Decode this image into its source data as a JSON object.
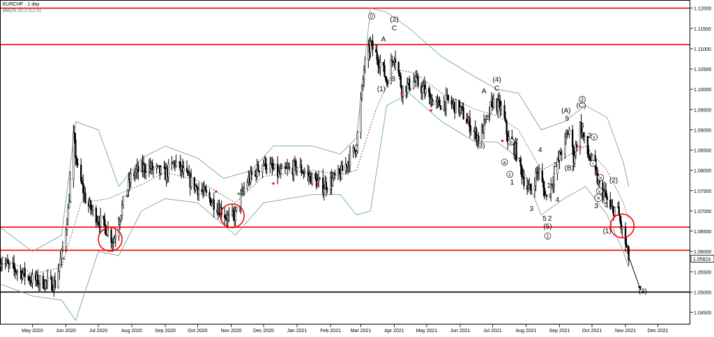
{
  "header": {
    "symbol_timeframe": "EURCHF · 1 day",
    "indicator": "BB(20,20,2.0,2.0)"
  },
  "colors": {
    "background": "#ffffff",
    "candle": "#000000",
    "bollinger": "#6fa79a",
    "sma_dotted": "#555555",
    "support_resistance": "#ff0000",
    "target_line": "#000000",
    "buy_arrow": "#1a9e1a",
    "sell_arrow": "#d02020",
    "highlight_circle": "#ff0000"
  },
  "chart_data": {
    "type": "candlestick",
    "title": "EURCHF · 1 day",
    "xlabel": "",
    "ylabel": "",
    "x_range": [
      "2020-04-01",
      "2021-12-31"
    ],
    "ylim": [
      1.042,
      1.122
    ],
    "y_ticks": [
      "1.12000",
      "1.11500",
      "1.11000",
      "1.10500",
      "1.10000",
      "1.09500",
      "1.09000",
      "1.08500",
      "1.08000",
      "1.07500",
      "1.07000",
      "1.06500",
      "1.06000",
      "1.05500",
      "1.05000",
      "1.04500"
    ],
    "x_ticks": [
      {
        "date": "2020-05-01",
        "label": "May 2020"
      },
      {
        "date": "2020-06-01",
        "label": "Jun 2020"
      },
      {
        "date": "2020-07-01",
        "label": "Jul 2020"
      },
      {
        "date": "2020-08-01",
        "label": "Aug 2020"
      },
      {
        "date": "2020-09-01",
        "label": "Sep 2020"
      },
      {
        "date": "2020-10-01",
        "label": "Oct 2020"
      },
      {
        "date": "2020-11-01",
        "label": "Nov 2020"
      },
      {
        "date": "2020-12-01",
        "label": "Dec 2020"
      },
      {
        "date": "2021-01-01",
        "label": "Jan 2021"
      },
      {
        "date": "2021-02-01",
        "label": "Feb 2021"
      },
      {
        "date": "2021-03-01",
        "label": "Mar 2021"
      },
      {
        "date": "2021-04-01",
        "label": "Apr 2021"
      },
      {
        "date": "2021-05-01",
        "label": "May 2021"
      },
      {
        "date": "2021-06-01",
        "label": "Jun 2021"
      },
      {
        "date": "2021-07-01",
        "label": "Jul 2021"
      },
      {
        "date": "2021-08-01",
        "label": "Aug 2021"
      },
      {
        "date": "2021-09-01",
        "label": "Sep 2021"
      },
      {
        "date": "2021-10-01",
        "label": "Oct 2021"
      },
      {
        "date": "2021-11-01",
        "label": "Nov 2021"
      },
      {
        "date": "2021-12-01",
        "label": "Dec 2021"
      }
    ],
    "current_price": "1.05824",
    "horizontal_levels": [
      {
        "price": 1.12,
        "color": "#ff0000"
      },
      {
        "price": 1.111,
        "color": "#ff0000"
      },
      {
        "price": 1.066,
        "color": "#ff0000"
      },
      {
        "price": 1.0603,
        "color": "#ff0000"
      },
      {
        "price": 1.05,
        "color": "#000000"
      }
    ],
    "close_path": [
      [
        "2020-04-01",
        1.058
      ],
      [
        "2020-04-10",
        1.056
      ],
      [
        "2020-04-20",
        1.055
      ],
      [
        "2020-05-01",
        1.053
      ],
      [
        "2020-05-10",
        1.0525
      ],
      [
        "2020-05-22",
        1.052
      ],
      [
        "2020-05-28",
        1.059
      ],
      [
        "2020-06-03",
        1.07
      ],
      [
        "2020-06-08",
        1.088
      ],
      [
        "2020-06-12",
        1.08
      ],
      [
        "2020-06-20",
        1.072
      ],
      [
        "2020-07-01",
        1.068
      ],
      [
        "2020-07-10",
        1.065
      ],
      [
        "2020-07-15",
        1.0625
      ],
      [
        "2020-07-22",
        1.07
      ],
      [
        "2020-08-01",
        1.079
      ],
      [
        "2020-08-15",
        1.081
      ],
      [
        "2020-09-01",
        1.079
      ],
      [
        "2020-09-10",
        1.082
      ],
      [
        "2020-09-25",
        1.077
      ],
      [
        "2020-10-08",
        1.074
      ],
      [
        "2020-10-20",
        1.071
      ],
      [
        "2020-10-30",
        1.068
      ],
      [
        "2020-11-05",
        1.069
      ],
      [
        "2020-11-15",
        1.077
      ],
      [
        "2020-12-01",
        1.082
      ],
      [
        "2020-12-15",
        1.079
      ],
      [
        "2021-01-01",
        1.081
      ],
      [
        "2021-01-15",
        1.078
      ],
      [
        "2021-01-25",
        1.076
      ],
      [
        "2021-02-10",
        1.079
      ],
      [
        "2021-02-25",
        1.086
      ],
      [
        "2021-03-04",
        1.105
      ],
      [
        "2021-03-10",
        1.111
      ],
      [
        "2021-03-20",
        1.106
      ],
      [
        "2021-03-25",
        1.102
      ],
      [
        "2021-04-01",
        1.109
      ],
      [
        "2021-04-08",
        1.1
      ],
      [
        "2021-04-20",
        1.102
      ],
      [
        "2021-05-01",
        1.099
      ],
      [
        "2021-05-10",
        1.096
      ],
      [
        "2021-05-20",
        1.097
      ],
      [
        "2021-06-01",
        1.095
      ],
      [
        "2021-06-10",
        1.091
      ],
      [
        "2021-06-18",
        1.088
      ],
      [
        "2021-06-25",
        1.092
      ],
      [
        "2021-07-01",
        1.097
      ],
      [
        "2021-07-10",
        1.095
      ],
      [
        "2021-07-15",
        1.088
      ],
      [
        "2021-07-22",
        1.085
      ],
      [
        "2021-08-01",
        1.076
      ],
      [
        "2021-08-05",
        1.075
      ],
      [
        "2021-08-12",
        1.08
      ],
      [
        "2021-08-20",
        1.073
      ],
      [
        "2021-08-27",
        1.079
      ],
      [
        "2021-09-03",
        1.085
      ],
      [
        "2021-09-10",
        1.09
      ],
      [
        "2021-09-14",
        1.083
      ],
      [
        "2021-09-20",
        1.091
      ],
      [
        "2021-09-27",
        1.084
      ],
      [
        "2021-10-01",
        1.082
      ],
      [
        "2021-10-08",
        1.076
      ],
      [
        "2021-10-13",
        1.074
      ],
      [
        "2021-10-18",
        1.07
      ],
      [
        "2021-10-24",
        1.071
      ],
      [
        "2021-10-28",
        1.066
      ],
      [
        "2021-11-01",
        1.062
      ],
      [
        "2021-11-04",
        1.0582
      ]
    ],
    "bollinger_upper": [
      [
        "2020-04-01",
        1.066
      ],
      [
        "2020-05-01",
        1.06
      ],
      [
        "2020-05-28",
        1.064
      ],
      [
        "2020-06-10",
        1.092
      ],
      [
        "2020-07-01",
        1.09
      ],
      [
        "2020-07-20",
        1.076
      ],
      [
        "2020-08-10",
        1.083
      ],
      [
        "2020-09-01",
        1.086
      ],
      [
        "2020-10-01",
        1.083
      ],
      [
        "2020-10-25",
        1.078
      ],
      [
        "2020-11-20",
        1.08
      ],
      [
        "2020-12-10",
        1.086
      ],
      [
        "2021-01-15",
        1.086
      ],
      [
        "2021-02-10",
        1.084
      ],
      [
        "2021-02-25",
        1.088
      ],
      [
        "2021-03-10",
        1.12
      ],
      [
        "2021-03-25",
        1.119
      ],
      [
        "2021-04-15",
        1.115
      ],
      [
        "2021-05-15",
        1.108
      ],
      [
        "2021-06-15",
        1.103
      ],
      [
        "2021-07-05",
        1.1
      ],
      [
        "2021-07-25",
        1.099
      ],
      [
        "2021-08-15",
        1.09
      ],
      [
        "2021-09-05",
        1.092
      ],
      [
        "2021-09-25",
        1.096
      ],
      [
        "2021-10-15",
        1.093
      ],
      [
        "2021-10-30",
        1.082
      ],
      [
        "2021-11-04",
        1.076
      ]
    ],
    "bollinger_lower": [
      [
        "2020-04-01",
        1.052
      ],
      [
        "2020-05-01",
        1.049
      ],
      [
        "2020-05-28",
        1.048
      ],
      [
        "2020-06-10",
        1.043
      ],
      [
        "2020-07-01",
        1.06
      ],
      [
        "2020-07-20",
        1.059
      ],
      [
        "2020-08-10",
        1.07
      ],
      [
        "2020-09-01",
        1.073
      ],
      [
        "2020-10-01",
        1.072
      ],
      [
        "2020-11-05",
        1.064
      ],
      [
        "2020-12-01",
        1.072
      ],
      [
        "2021-01-15",
        1.074
      ],
      [
        "2021-02-10",
        1.074
      ],
      [
        "2021-02-25",
        1.069
      ],
      [
        "2021-03-10",
        1.07
      ],
      [
        "2021-03-25",
        1.096
      ],
      [
        "2021-04-15",
        1.099
      ],
      [
        "2021-05-15",
        1.092
      ],
      [
        "2021-06-15",
        1.087
      ],
      [
        "2021-07-05",
        1.087
      ],
      [
        "2021-07-25",
        1.083
      ],
      [
        "2021-08-15",
        1.069
      ],
      [
        "2021-09-05",
        1.073
      ],
      [
        "2021-09-25",
        1.076
      ],
      [
        "2021-10-15",
        1.069
      ],
      [
        "2021-10-30",
        1.06
      ],
      [
        "2021-11-04",
        1.056
      ]
    ],
    "sma_middle": [
      [
        "2020-04-01",
        1.059
      ],
      [
        "2020-05-01",
        1.0545
      ],
      [
        "2020-05-28",
        1.056
      ],
      [
        "2020-06-15",
        1.072
      ],
      [
        "2020-07-10",
        1.073
      ],
      [
        "2020-08-10",
        1.0765
      ],
      [
        "2020-09-01",
        1.0795
      ],
      [
        "2020-10-01",
        1.0775
      ],
      [
        "2020-11-05",
        1.072
      ],
      [
        "2020-12-01",
        1.0785
      ],
      [
        "2021-01-15",
        1.08
      ],
      [
        "2021-02-10",
        1.079
      ],
      [
        "2021-02-25",
        1.08
      ],
      [
        "2021-03-15",
        1.095
      ],
      [
        "2021-04-01",
        1.105
      ],
      [
        "2021-04-20",
        1.104
      ],
      [
        "2021-05-15",
        1.099
      ],
      [
        "2021-06-15",
        1.095
      ],
      [
        "2021-07-05",
        1.0935
      ],
      [
        "2021-07-25",
        1.09
      ],
      [
        "2021-08-15",
        1.08
      ],
      [
        "2021-09-05",
        1.083
      ],
      [
        "2021-09-25",
        1.086
      ],
      [
        "2021-10-15",
        1.08
      ],
      [
        "2021-10-30",
        1.072
      ],
      [
        "2021-11-04",
        1.068
      ]
    ],
    "wave_labels": [
      {
        "text": "0",
        "date": "2021-03-11",
        "price": 1.1175,
        "circled": true
      },
      {
        "text": "(2)",
        "date": "2021-04-01",
        "price": 1.1167
      },
      {
        "text": "C",
        "date": "2021-04-01",
        "price": 1.1145
      },
      {
        "text": "A",
        "date": "2021-03-22",
        "price": 1.1118
      },
      {
        "text": "(1)",
        "date": "2021-03-20",
        "price": 1.0995
      },
      {
        "text": "B",
        "date": "2021-03-31",
        "price": 1.102
      },
      {
        "text": "(4)",
        "date": "2021-07-05",
        "price": 1.1018
      },
      {
        "text": "A",
        "date": "2021-06-23",
        "price": 1.099
      },
      {
        "text": "C",
        "date": "2021-07-05",
        "price": 1.0997
      },
      {
        "text": "B",
        "date": "2021-06-27",
        "price": 1.0925
      },
      {
        "text": "(3)",
        "date": "2021-06-20",
        "price": 1.0855
      },
      {
        "text": "b",
        "date": "2021-07-18",
        "price": 1.0865,
        "circled": true
      },
      {
        "text": "2",
        "date": "2021-07-23",
        "price": 1.0867
      },
      {
        "text": "a",
        "date": "2021-07-12",
        "price": 1.0815,
        "circled": true
      },
      {
        "text": "c",
        "date": "2021-07-17",
        "price": 1.0785,
        "circled": true
      },
      {
        "text": "1",
        "date": "2021-07-19",
        "price": 1.0765
      },
      {
        "text": "4",
        "date": "2021-08-14",
        "price": 1.0845
      },
      {
        "text": "3",
        "date": "2021-08-06",
        "price": 1.07
      },
      {
        "text": "3",
        "date": "2021-08-28",
        "price": 1.0808
      },
      {
        "text": "1",
        "date": "2021-08-22",
        "price": 1.0757
      },
      {
        "text": "4",
        "date": "2021-08-30",
        "price": 1.0722
      },
      {
        "text": "5",
        "date": "2021-08-18",
        "price": 1.0676
      },
      {
        "text": "2",
        "date": "2021-08-23",
        "price": 1.0676
      },
      {
        "text": "(5)",
        "date": "2021-08-21",
        "price": 1.0656
      },
      {
        "text": "1",
        "date": "2021-08-21",
        "price": 1.0633,
        "circled": true
      },
      {
        "text": "(A)",
        "date": "2021-09-07",
        "price": 1.0942
      },
      {
        "text": "5",
        "date": "2021-09-08",
        "price": 1.0922
      },
      {
        "text": "(B)",
        "date": "2021-09-10",
        "price": 1.08
      },
      {
        "text": "2",
        "date": "2021-09-22",
        "price": 1.097,
        "circled": true
      },
      {
        "text": "(C)",
        "date": "2021-09-21",
        "price": 1.0955
      },
      {
        "text": "4",
        "date": "2021-09-22",
        "price": 1.0905
      },
      {
        "text": "2",
        "date": "2021-09-29",
        "price": 1.088
      },
      {
        "text": "ii",
        "date": "2021-10-03",
        "price": 1.0877,
        "circled": true
      },
      {
        "text": "1",
        "date": "2021-09-28",
        "price": 1.084
      },
      {
        "text": "i",
        "date": "2021-10-02",
        "price": 1.0812,
        "circled": true
      },
      {
        "text": "iv",
        "date": "2021-10-09",
        "price": 1.0777,
        "circled": true
      },
      {
        "text": "(2)",
        "date": "2021-10-21",
        "price": 1.077
      },
      {
        "text": "v",
        "date": "2021-10-08",
        "price": 1.0744,
        "circled": true
      },
      {
        "text": "iii",
        "date": "2021-10-07",
        "price": 1.0727,
        "circled": true
      },
      {
        "text": "3",
        "date": "2021-10-05",
        "price": 1.0707
      },
      {
        "text": "5",
        "date": "2021-10-14",
        "price": 1.071
      },
      {
        "text": "(1)",
        "date": "2021-10-15",
        "price": 1.0645
      },
      {
        "text": "(3)",
        "date": "2021-11-17",
        "price": 1.0496
      }
    ],
    "buy_arrows": [
      [
        "2020-05-30",
        1.058
      ],
      [
        "2020-06-05",
        1.072
      ],
      [
        "2020-07-20",
        1.068
      ],
      [
        "2020-08-20",
        1.079
      ],
      [
        "2020-11-08",
        1.074
      ],
      [
        "2021-02-25",
        1.086
      ]
    ],
    "sell_arrows": [
      [
        "2020-10-18",
        1.075
      ],
      [
        "2020-12-10",
        1.077
      ],
      [
        "2021-01-20",
        1.077
      ],
      [
        "2021-04-08",
        1.099
      ],
      [
        "2021-05-05",
        1.095
      ],
      [
        "2021-06-08",
        1.092
      ],
      [
        "2021-07-10",
        1.0875
      ],
      [
        "2021-08-03",
        1.076
      ],
      [
        "2021-09-20",
        1.086
      ],
      [
        "2021-10-06",
        1.08
      ],
      [
        "2021-10-22",
        1.069
      ]
    ],
    "highlight_circles": [
      [
        "2020-07-12",
        1.063
      ],
      [
        "2020-11-02",
        1.0688
      ],
      [
        "2021-10-29",
        1.0663
      ]
    ],
    "projection_arrow": [
      [
        "2021-11-05",
        1.058
      ],
      [
        "2021-11-15",
        1.0505
      ]
    ]
  }
}
